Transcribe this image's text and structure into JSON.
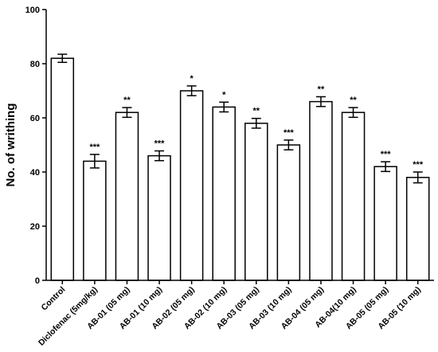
{
  "chart_data": {
    "type": "bar",
    "y_label": "No. of writhing",
    "categories": [
      "Control",
      "Diclofenac (5mg/kg)",
      "AB-01 (05 mg)",
      "AB-01 (10 mg)",
      "AB-02 (05 mg)",
      "AB-02 (10 mg)",
      "AB-03 (05 mg)",
      "AB-03 (10 mg)",
      "AB-04 (05 mg)",
      "AB-04(10 mg)",
      "AB-05 (05 mg)",
      "AB-05 (10 mg)"
    ],
    "values": [
      82,
      44,
      62,
      46,
      70,
      64,
      58,
      50,
      66,
      62,
      42,
      38
    ],
    "errors": [
      1.5,
      2.5,
      1.8,
      1.8,
      1.8,
      1.8,
      1.8,
      1.8,
      1.8,
      1.8,
      1.8,
      2
    ],
    "significance": [
      null,
      "***",
      "**",
      "***",
      "*",
      "*",
      "**",
      "***",
      "**",
      "**",
      "***",
      "***"
    ],
    "color": "#ffffff",
    "ylim": [
      0,
      100
    ],
    "yticks": [
      0,
      20,
      40,
      60,
      80,
      100
    ],
    "grid": false
  }
}
